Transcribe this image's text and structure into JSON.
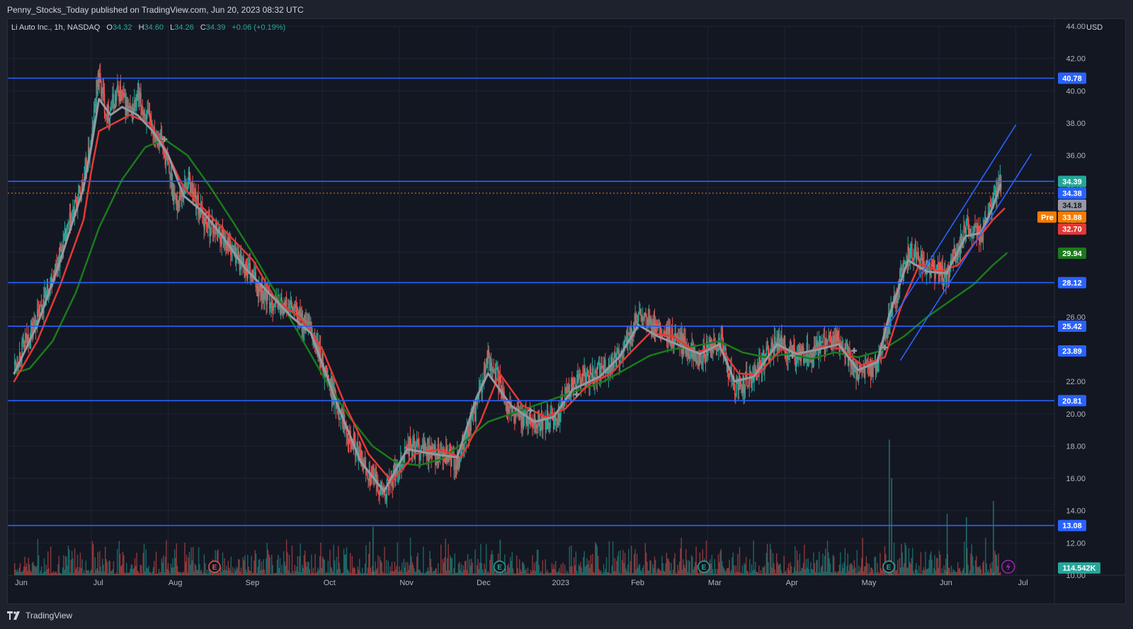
{
  "header": {
    "publisher": "Penny_Stocks_Today published on TradingView.com, Jun 20, 2023 08:32 UTC"
  },
  "legend": {
    "symbol": "Li Auto Inc., 1h, NASDAQ",
    "open_label": "O",
    "open": "34.32",
    "high_label": "H",
    "high": "34.60",
    "low_label": "L",
    "low": "34.26",
    "close_label": "C",
    "close": "34.39",
    "change": "+0.06 (+0.19%)"
  },
  "currency": "USD",
  "footer": {
    "brand": "TradingView"
  },
  "colors": {
    "background": "#131722",
    "grid": "#1f2433",
    "candle_up": "#26a69a",
    "candle_down": "#ef5350",
    "ma_fast": "#9598a1",
    "ma_mid": "#e53935",
    "ma_slow": "#1b7a1b",
    "level_line": "#2962ff",
    "channel": "#2962ff",
    "pre_tag": "#f57c00"
  },
  "chart_data": {
    "type": "candlestick",
    "symbol": "Li Auto Inc.",
    "interval": "1h",
    "exchange": "NASDAQ",
    "ylim": [
      10,
      44
    ],
    "y_ticks": [
      "10.00",
      "12.00",
      "14.00",
      "16.00",
      "18.00",
      "20.00",
      "22.00",
      "24.00",
      "26.00",
      "28.00",
      "30.00",
      "32.00",
      "34.00",
      "36.00",
      "38.00",
      "40.00",
      "42.00",
      "44.00"
    ],
    "x_ticks": [
      "Jun",
      "Jul",
      "Aug",
      "Sep",
      "Oct",
      "Nov",
      "Dec",
      "2023",
      "Feb",
      "Mar",
      "Apr",
      "May",
      "Jun",
      "Jul"
    ],
    "grid": true,
    "horizontal_levels": [
      40.78,
      34.39,
      28.12,
      25.42,
      20.81,
      13.08
    ],
    "price_tags": [
      {
        "label": "40.78",
        "value": 40.78,
        "color": "#2962ff"
      },
      {
        "label": "34.39",
        "value": 34.39,
        "color": "#26a69a"
      },
      {
        "label": "34.38",
        "value": 33.66,
        "color": "#2962ff"
      },
      {
        "label": "34.18",
        "value": 32.92,
        "color": "#9598a1"
      },
      {
        "label": "33.88",
        "value": 32.18,
        "color": "#f57c00",
        "prefix": "Pre"
      },
      {
        "label": "32.70",
        "value": 31.44,
        "color": "#e53935"
      },
      {
        "label": "29.94",
        "value": 29.94,
        "color": "#1b7a1b"
      },
      {
        "label": "28.12",
        "value": 28.12,
        "color": "#2962ff"
      },
      {
        "label": "25.42",
        "value": 25.42,
        "color": "#2962ff"
      },
      {
        "label": "23.89",
        "value": 23.89,
        "color": "#2962ff"
      },
      {
        "label": "20.81",
        "value": 20.81,
        "color": "#2962ff"
      },
      {
        "label": "13.08",
        "value": 13.08,
        "color": "#2962ff"
      },
      {
        "label": "114.542K",
        "value": 10.45,
        "color": "#26a69a"
      }
    ],
    "pre_market_price": 33.66,
    "price_path": [
      [
        0.0,
        23.0
      ],
      [
        0.3,
        26.0
      ],
      [
        0.6,
        30.0
      ],
      [
        0.9,
        34.5
      ],
      [
        1.0,
        37.0
      ],
      [
        1.08,
        41.0
      ],
      [
        1.2,
        38.5
      ],
      [
        1.35,
        40.0
      ],
      [
        1.5,
        38.5
      ],
      [
        1.6,
        39.5
      ],
      [
        1.75,
        38.0
      ],
      [
        1.9,
        37.0
      ],
      [
        2.1,
        33.0
      ],
      [
        2.25,
        34.5
      ],
      [
        2.45,
        32.0
      ],
      [
        2.7,
        31.0
      ],
      [
        3.0,
        29.0
      ],
      [
        3.3,
        27.0
      ],
      [
        3.6,
        26.5
      ],
      [
        3.85,
        25.0
      ],
      [
        4.15,
        21.0
      ],
      [
        4.5,
        17.0
      ],
      [
        4.8,
        15.0
      ],
      [
        5.1,
        18.0
      ],
      [
        5.45,
        17.5
      ],
      [
        5.75,
        17.0
      ],
      [
        6.0,
        20.5
      ],
      [
        6.15,
        23.5
      ],
      [
        6.45,
        20.0
      ],
      [
        6.75,
        19.5
      ],
      [
        7.0,
        19.5
      ],
      [
        7.25,
        22.0
      ],
      [
        7.6,
        22.5
      ],
      [
        7.85,
        23.5
      ],
      [
        8.1,
        26.0
      ],
      [
        8.35,
        25.0
      ],
      [
        8.6,
        24.5
      ],
      [
        8.9,
        23.5
      ],
      [
        9.15,
        24.5
      ],
      [
        9.35,
        21.5
      ],
      [
        9.6,
        22.5
      ],
      [
        9.9,
        24.5
      ],
      [
        10.15,
        23.5
      ],
      [
        10.45,
        24.0
      ],
      [
        10.7,
        24.5
      ],
      [
        10.95,
        22.5
      ],
      [
        11.2,
        23.0
      ],
      [
        11.35,
        26.0
      ],
      [
        11.6,
        30.0
      ],
      [
        11.85,
        29.0
      ],
      [
        12.1,
        28.5
      ],
      [
        12.35,
        31.5
      ],
      [
        12.55,
        31.0
      ],
      [
        12.7,
        33.0
      ],
      [
        12.8,
        34.39
      ]
    ],
    "ma_fast_path": [
      [
        0.0,
        22.5
      ],
      [
        0.3,
        25.5
      ],
      [
        0.6,
        29.5
      ],
      [
        0.9,
        34.0
      ],
      [
        1.0,
        36.5
      ],
      [
        1.1,
        39.5
      ],
      [
        1.25,
        38.5
      ],
      [
        1.4,
        39.0
      ],
      [
        1.6,
        38.5
      ],
      [
        1.8,
        37.5
      ],
      [
        2.0,
        36.0
      ],
      [
        2.2,
        33.5
      ],
      [
        2.45,
        32.5
      ],
      [
        2.7,
        31.0
      ],
      [
        3.0,
        29.0
      ],
      [
        3.3,
        27.5
      ],
      [
        3.6,
        26.0
      ],
      [
        3.85,
        25.0
      ],
      [
        4.2,
        20.5
      ],
      [
        4.5,
        17.0
      ],
      [
        4.8,
        15.2
      ],
      [
        5.1,
        17.8
      ],
      [
        5.45,
        17.5
      ],
      [
        5.75,
        17.3
      ],
      [
        6.0,
        21.0
      ],
      [
        6.15,
        22.5
      ],
      [
        6.45,
        20.5
      ],
      [
        6.75,
        19.5
      ],
      [
        7.0,
        19.8
      ],
      [
        7.25,
        21.5
      ],
      [
        7.6,
        22.3
      ],
      [
        7.85,
        23.5
      ],
      [
        8.1,
        25.5
      ],
      [
        8.35,
        24.8
      ],
      [
        8.6,
        24.3
      ],
      [
        8.9,
        23.7
      ],
      [
        9.15,
        24.3
      ],
      [
        9.35,
        22.0
      ],
      [
        9.6,
        22.3
      ],
      [
        9.9,
        24.3
      ],
      [
        10.15,
        23.7
      ],
      [
        10.45,
        24.0
      ],
      [
        10.7,
        24.3
      ],
      [
        10.95,
        22.7
      ],
      [
        11.2,
        23.2
      ],
      [
        11.35,
        26.0
      ],
      [
        11.6,
        29.5
      ],
      [
        11.85,
        28.8
      ],
      [
        12.1,
        28.7
      ],
      [
        12.35,
        31.0
      ],
      [
        12.55,
        31.2
      ],
      [
        12.7,
        32.8
      ],
      [
        12.8,
        34.18
      ]
    ],
    "ma_mid_path": [
      [
        0.0,
        22.0
      ],
      [
        0.3,
        24.5
      ],
      [
        0.6,
        28.0
      ],
      [
        0.9,
        32.0
      ],
      [
        1.0,
        35.0
      ],
      [
        1.1,
        37.5
      ],
      [
        1.3,
        38.0
      ],
      [
        1.5,
        38.5
      ],
      [
        1.75,
        38.0
      ],
      [
        1.95,
        36.5
      ],
      [
        2.2,
        34.0
      ],
      [
        2.5,
        32.5
      ],
      [
        2.8,
        31.0
      ],
      [
        3.1,
        29.5
      ],
      [
        3.4,
        27.0
      ],
      [
        3.7,
        26.0
      ],
      [
        4.0,
        24.0
      ],
      [
        4.3,
        20.5
      ],
      [
        4.6,
        17.5
      ],
      [
        4.9,
        15.8
      ],
      [
        5.2,
        17.5
      ],
      [
        5.5,
        17.8
      ],
      [
        5.8,
        17.3
      ],
      [
        6.05,
        19.5
      ],
      [
        6.3,
        22.5
      ],
      [
        6.6,
        20.5
      ],
      [
        6.9,
        19.8
      ],
      [
        7.15,
        20.3
      ],
      [
        7.45,
        21.8
      ],
      [
        7.75,
        22.5
      ],
      [
        8.0,
        23.8
      ],
      [
        8.25,
        25.0
      ],
      [
        8.55,
        24.8
      ],
      [
        8.85,
        23.8
      ],
      [
        9.15,
        24.2
      ],
      [
        9.4,
        22.5
      ],
      [
        9.65,
        22.4
      ],
      [
        9.95,
        24.0
      ],
      [
        10.25,
        23.7
      ],
      [
        10.5,
        24.2
      ],
      [
        10.75,
        24.0
      ],
      [
        11.0,
        23.0
      ],
      [
        11.3,
        23.5
      ],
      [
        11.5,
        26.5
      ],
      [
        11.75,
        29.3
      ],
      [
        12.0,
        28.8
      ],
      [
        12.25,
        29.2
      ],
      [
        12.5,
        30.8
      ],
      [
        12.7,
        32.0
      ],
      [
        12.85,
        32.7
      ]
    ],
    "ma_slow_path": [
      [
        0.0,
        22.5
      ],
      [
        0.2,
        22.8
      ],
      [
        0.5,
        24.5
      ],
      [
        0.8,
        27.5
      ],
      [
        1.1,
        31.5
      ],
      [
        1.4,
        34.5
      ],
      [
        1.7,
        36.5
      ],
      [
        1.95,
        37.0
      ],
      [
        2.25,
        36.0
      ],
      [
        2.55,
        34.0
      ],
      [
        2.85,
        31.8
      ],
      [
        3.15,
        29.5
      ],
      [
        3.45,
        27.0
      ],
      [
        3.75,
        24.5
      ],
      [
        4.05,
        22.0
      ],
      [
        4.35,
        19.8
      ],
      [
        4.65,
        18.0
      ],
      [
        4.95,
        17.0
      ],
      [
        5.25,
        16.8
      ],
      [
        5.55,
        17.2
      ],
      [
        5.85,
        18.3
      ],
      [
        6.15,
        19.5
      ],
      [
        6.45,
        20.0
      ],
      [
        6.75,
        20.5
      ],
      [
        7.05,
        21.0
      ],
      [
        7.35,
        21.5
      ],
      [
        7.65,
        22.0
      ],
      [
        7.95,
        22.8
      ],
      [
        8.25,
        23.6
      ],
      [
        8.55,
        24.0
      ],
      [
        8.85,
        24.2
      ],
      [
        9.15,
        24.5
      ],
      [
        9.45,
        23.8
      ],
      [
        9.75,
        23.5
      ],
      [
        10.05,
        23.7
      ],
      [
        10.35,
        23.4
      ],
      [
        10.65,
        23.8
      ],
      [
        10.95,
        23.5
      ],
      [
        11.25,
        23.9
      ],
      [
        11.55,
        24.8
      ],
      [
        11.85,
        26.0
      ],
      [
        12.15,
        27.0
      ],
      [
        12.45,
        28.0
      ],
      [
        12.7,
        29.2
      ],
      [
        12.88,
        29.94
      ]
    ],
    "channel_upper": [
      [
        11.35,
        25.5
      ],
      [
        13.0,
        37.9
      ]
    ],
    "channel_lower": [
      [
        11.5,
        23.3
      ],
      [
        13.2,
        36.1
      ]
    ],
    "volume_spikes": [
      [
        4.65,
        13.0
      ],
      [
        6.3,
        12.2
      ],
      [
        11.35,
        18.4
      ],
      [
        11.38,
        16.0
      ],
      [
        12.1,
        13.8
      ],
      [
        12.35,
        13.6
      ],
      [
        12.7,
        14.6
      ]
    ],
    "earnings_markers": [
      {
        "label": "E",
        "x": 2.6
      },
      {
        "label": "E",
        "x": 6.3
      },
      {
        "label": "E",
        "x": 8.95
      },
      {
        "label": "E",
        "x": 11.35
      }
    ]
  }
}
